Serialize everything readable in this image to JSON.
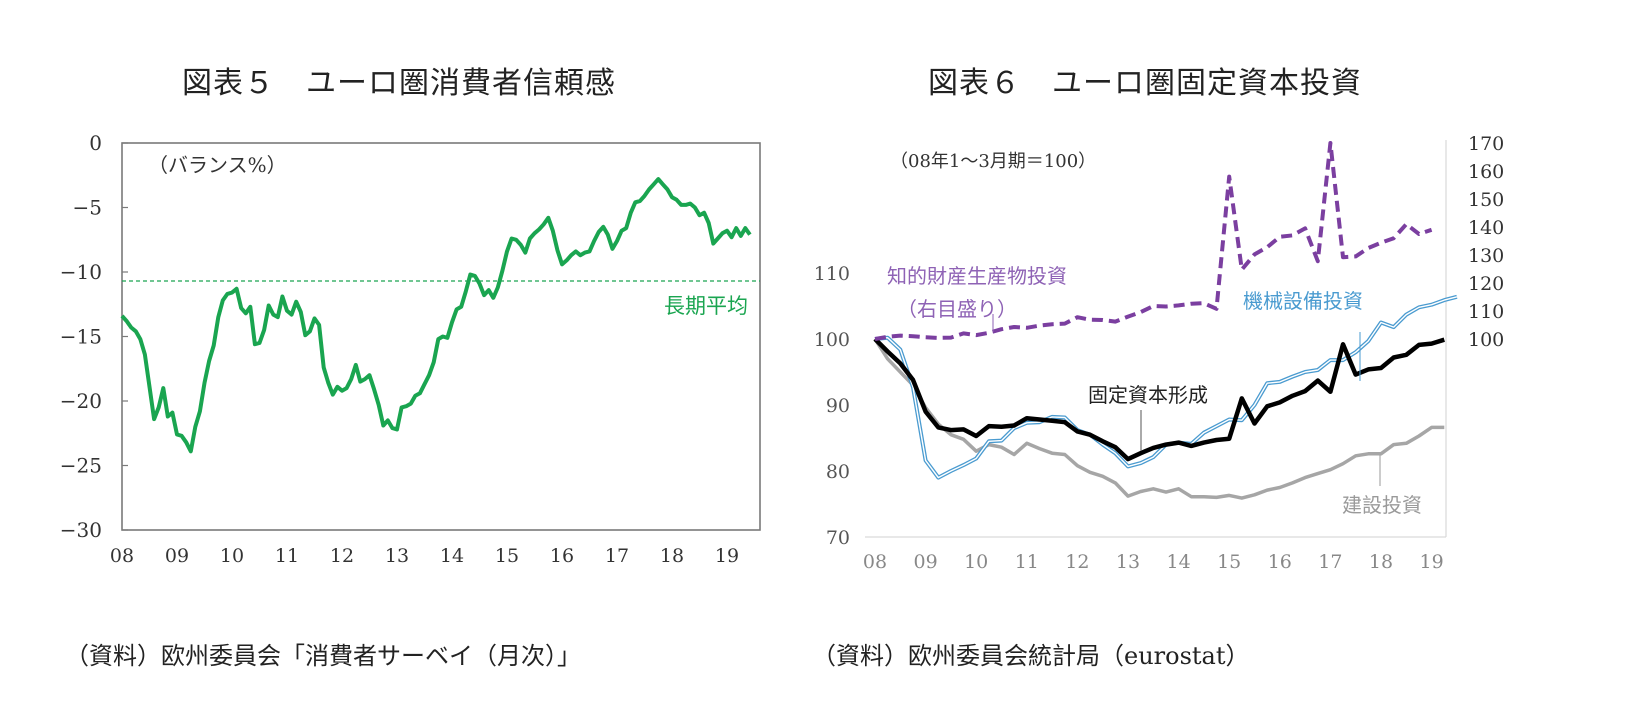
{
  "figures": [
    {
      "title": "図表５　ユーロ圏消費者信頼感",
      "source": "（資料）欧州委員会「消費者サーベイ（月次）」"
    },
    {
      "title": "図表６　ユーロ圏固定資本投資",
      "source": "（資料）欧州委員会統計局（eurostat）"
    }
  ],
  "chart_data": [
    {
      "type": "line",
      "title": "図表５　ユーロ圏消費者信頼感",
      "unit_label": "（バランス%）",
      "xlabel": "",
      "ylabel": "",
      "ylim": [
        -30,
        0
      ],
      "yticks": [
        0,
        -5,
        -10,
        -15,
        -20,
        -25,
        -30
      ],
      "ytick_labels": [
        "0",
        "−5",
        "−10",
        "−15",
        "−20",
        "−25",
        "−30"
      ],
      "xticks": [
        "08",
        "09",
        "10",
        "11",
        "12",
        "13",
        "14",
        "15",
        "16",
        "17",
        "18",
        "19"
      ],
      "x_start_year": 2008,
      "frequency": "monthly",
      "grid": false,
      "reference_line": {
        "name": "長期平均",
        "value": -10.7,
        "style": "dashed"
      },
      "series": [
        {
          "name": "消費者信頼感",
          "color": "#1aa550",
          "values": [
            -13.4,
            -13.8,
            -14.3,
            -14.6,
            -15.2,
            -16.4,
            -18.9,
            -21.4,
            -20.5,
            -19.0,
            -21.2,
            -20.9,
            -22.6,
            -22.7,
            -23.2,
            -23.9,
            -22.0,
            -20.8,
            -18.6,
            -16.9,
            -15.7,
            -13.5,
            -12.2,
            -11.7,
            -11.6,
            -11.3,
            -12.8,
            -13.2,
            -12.7,
            -15.6,
            -15.5,
            -14.5,
            -12.6,
            -13.3,
            -13.5,
            -11.9,
            -13.0,
            -13.3,
            -12.3,
            -13.1,
            -14.9,
            -14.6,
            -13.6,
            -14.1,
            -17.4,
            -18.6,
            -19.5,
            -18.9,
            -19.2,
            -19.0,
            -18.3,
            -17.2,
            -18.5,
            -18.3,
            -18.0,
            -19.1,
            -20.3,
            -21.9,
            -21.5,
            -22.1,
            -22.2,
            -20.5,
            -20.4,
            -20.2,
            -19.6,
            -19.4,
            -18.7,
            -18.0,
            -17.0,
            -15.2,
            -15.0,
            -15.1,
            -13.9,
            -12.9,
            -12.7,
            -11.5,
            -10.2,
            -10.3,
            -10.9,
            -11.8,
            -11.4,
            -12.0,
            -11.2,
            -9.9,
            -8.4,
            -7.4,
            -7.5,
            -7.9,
            -8.5,
            -7.4,
            -7.0,
            -6.7,
            -6.3,
            -5.8,
            -6.8,
            -8.3,
            -9.4,
            -9.1,
            -8.7,
            -8.4,
            -8.7,
            -8.5,
            -8.4,
            -7.6,
            -6.9,
            -6.5,
            -7.1,
            -8.2,
            -7.6,
            -6.8,
            -6.6,
            -5.4,
            -4.6,
            -4.5,
            -4.1,
            -3.6,
            -3.2,
            -2.8,
            -3.2,
            -3.6,
            -4.2,
            -4.4,
            -4.8,
            -4.8,
            -4.7,
            -5.0,
            -5.6,
            -5.4,
            -6.2,
            -7.8,
            -7.4,
            -7.0,
            -6.8,
            -7.3,
            -6.6,
            -7.2,
            -6.6,
            -7.1
          ]
        }
      ]
    },
    {
      "type": "line",
      "title": "図表６　ユーロ圏固定資本投資",
      "unit_label": "（08年1～3月期＝100）",
      "xlabel": "",
      "ylabel": "",
      "ylim": [
        70,
        110
      ],
      "yticks": [
        70,
        80,
        90,
        100,
        110
      ],
      "y2lim": [
        100,
        170
      ],
      "y2ticks": [
        100,
        110,
        120,
        130,
        140,
        150,
        160,
        170
      ],
      "xticks": [
        "08",
        "09",
        "10",
        "11",
        "12",
        "13",
        "14",
        "15",
        "16",
        "17",
        "18",
        "19"
      ],
      "x_start_year": 2008,
      "frequency": "quarterly",
      "grid": false,
      "series": [
        {
          "name": "固定資本形成",
          "axis": "left",
          "color": "#000000",
          "style": "thick",
          "values": [
            100.0,
            98.1,
            96.3,
            93.8,
            89.0,
            86.6,
            86.2,
            86.3,
            85.3,
            86.8,
            86.7,
            86.9,
            88.0,
            87.8,
            87.6,
            87.4,
            86.0,
            85.5,
            84.5,
            83.6,
            81.8,
            82.7,
            83.5,
            84.0,
            84.3,
            83.8,
            84.3,
            84.7,
            84.9,
            91.0,
            87.2,
            89.8,
            90.4,
            91.4,
            92.1,
            93.7,
            92.0,
            99.2,
            94.6,
            95.4,
            95.6,
            97.2,
            97.6,
            99.1,
            99.3,
            99.9
          ]
        },
        {
          "name": "機械設備投資",
          "axis": "left",
          "color": "#4a9bd0",
          "style": "double",
          "values": [
            100.0,
            100.2,
            98.4,
            92.7,
            81.6,
            79.0,
            80.0,
            80.9,
            81.9,
            84.5,
            84.6,
            86.5,
            87.3,
            87.4,
            88.2,
            88.1,
            86.2,
            85.5,
            84.0,
            82.7,
            80.7,
            81.2,
            82.1,
            84.0,
            84.3,
            84.1,
            85.8,
            86.8,
            87.8,
            87.7,
            90.0,
            93.3,
            93.5,
            94.3,
            95.0,
            95.3,
            96.8,
            96.8,
            98.0,
            99.7,
            102.5,
            101.8,
            103.7,
            104.8,
            105.2,
            105.9,
            106.4
          ]
        },
        {
          "name": "建設投資",
          "axis": "left",
          "color": "#a6a6a6",
          "style": "solid",
          "values": [
            100.0,
            97.0,
            95.0,
            93.0,
            89.6,
            87.1,
            85.5,
            84.8,
            83.0,
            84.0,
            83.6,
            82.5,
            84.2,
            83.4,
            82.7,
            82.5,
            80.8,
            79.8,
            79.2,
            78.2,
            76.2,
            76.9,
            77.3,
            76.8,
            77.3,
            76.1,
            76.1,
            76.0,
            76.3,
            75.9,
            76.4,
            77.1,
            77.5,
            78.2,
            79.0,
            79.6,
            80.2,
            81.1,
            82.3,
            82.6,
            82.6,
            84.0,
            84.2,
            85.3,
            86.6,
            86.6
          ]
        },
        {
          "name": "知的財産生産物投資（右目盛り）",
          "axis": "right",
          "color": "#7b3fa0",
          "style": "dashed",
          "values": [
            100.0,
            100.8,
            101.2,
            101.0,
            100.6,
            100.4,
            100.5,
            102.0,
            101.4,
            102.2,
            103.5,
            104.3,
            104.0,
            104.8,
            105.3,
            105.5,
            107.8,
            106.9,
            106.8,
            106.2,
            108.0,
            109.6,
            111.8,
            111.6,
            112.0,
            112.6,
            112.8,
            110.8,
            158.0,
            124.8,
            130.2,
            132.8,
            136.5,
            137.0,
            139.5,
            127.8,
            170.0,
            129.2,
            129.5,
            132.5,
            134.4,
            136.0,
            141.0,
            137.5,
            139.0
          ]
        }
      ],
      "annotations": [
        "知的財産生産物投資",
        "（右目盛り）",
        "機械設備投資",
        "固定資本形成",
        "建設投資"
      ]
    }
  ]
}
